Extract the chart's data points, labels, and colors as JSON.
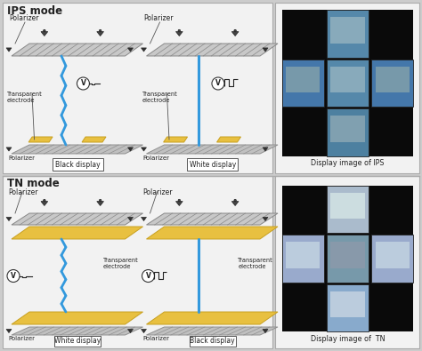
{
  "bg_color": "#cccccc",
  "panel_bg": "#f2f2f2",
  "title_ips": "IPS mode",
  "title_tn": "TN mode",
  "label_polarizer": "Polarizer",
  "label_transparent_electrode": "Transparent\nelectrode",
  "label_transparent_electrode2": "Transparent\nelectrode",
  "label_black": "Black display",
  "label_white": "White display",
  "label_ips_image": "Display image of IPS",
  "label_tn_image": "Display image of  TN",
  "stripe_light": "#c0c0c0",
  "stripe_dark": "#909090",
  "electrode_color": "#e8c040",
  "electrode_edge": "#c8a020",
  "blue_color": "#3399dd",
  "text_color": "#222222",
  "panel_edge": "#aaaaaa",
  "white": "#ffffff",
  "black": "#111111"
}
